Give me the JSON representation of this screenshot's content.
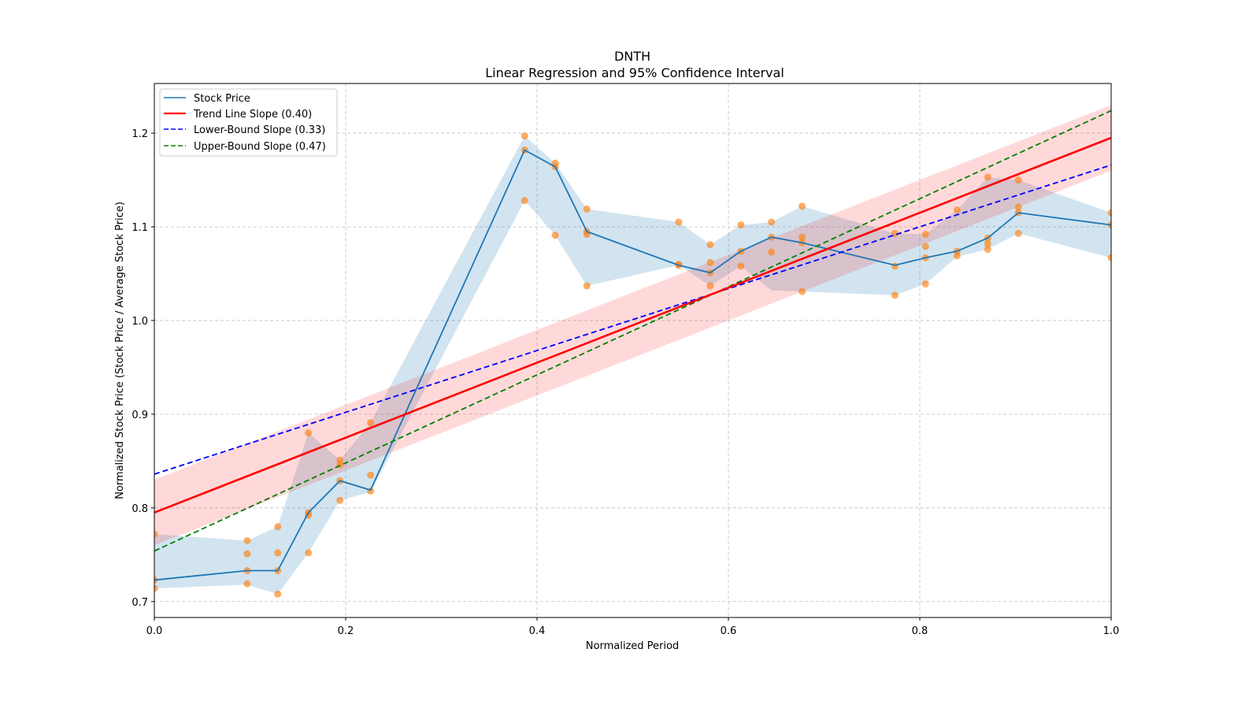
{
  "chart_data": {
    "type": "line",
    "title": "DNTH",
    "subtitle": "Linear Regression and 95% Confidence Interval",
    "xlabel": "Normalized Period",
    "ylabel": "Normalized Stock Price (Stock Price / Average Stock Price)",
    "xlim": [
      0.0,
      1.0
    ],
    "ylim": [
      0.683,
      1.253
    ],
    "xticks": [
      0.0,
      0.2,
      0.4,
      0.6,
      0.8,
      1.0
    ],
    "xtick_labels": [
      "0.0",
      "0.2",
      "0.4",
      "0.6",
      "0.8",
      "1.0"
    ],
    "yticks": [
      0.7,
      0.8,
      0.9,
      1.0,
      1.1,
      1.2
    ],
    "ytick_labels": [
      "0.7",
      "0.8",
      "0.9",
      "1.0",
      "1.1",
      "1.2"
    ],
    "grid": true,
    "legend_position": "top-left",
    "colors": {
      "stock_line": "#1f77b4",
      "stock_band": "#1f77b4",
      "scatter": "#ff7f0e",
      "trend": "#ff0000",
      "trend_band": "#ff0000",
      "lower": "#0000ff",
      "upper": "#008000",
      "grid": "#b0b0b0"
    },
    "legend": [
      {
        "label": "Stock Price",
        "style": "solid",
        "color": "#1f77b4"
      },
      {
        "label": "Trend Line Slope (0.40)",
        "style": "solid",
        "color": "#ff0000"
      },
      {
        "label": "Lower-Bound Slope (0.33)",
        "style": "dashed",
        "color": "#0000ff"
      },
      {
        "label": "Upper-Bound Slope (0.47)",
        "style": "dashed",
        "color": "#008000"
      }
    ],
    "stock_price": {
      "x": [
        0.0,
        0.097,
        0.129,
        0.161,
        0.194,
        0.226,
        0.387,
        0.419,
        0.452,
        0.548,
        0.581,
        0.613,
        0.645,
        0.677,
        0.774,
        0.806,
        0.839,
        0.871,
        0.903,
        1.0
      ],
      "mean": [
        0.723,
        0.733,
        0.733,
        0.795,
        0.829,
        0.819,
        1.182,
        1.164,
        1.095,
        1.059,
        1.051,
        1.074,
        1.089,
        1.083,
        1.059,
        1.067,
        1.074,
        1.088,
        1.115,
        1.102
      ],
      "low": [
        0.714,
        0.718,
        0.708,
        0.752,
        0.808,
        0.817,
        1.128,
        1.091,
        1.037,
        1.059,
        1.037,
        1.058,
        1.032,
        1.031,
        1.027,
        1.039,
        1.068,
        1.076,
        1.093,
        1.067
      ],
      "high": [
        0.772,
        0.765,
        0.78,
        0.88,
        0.851,
        0.891,
        1.197,
        1.168,
        1.119,
        1.105,
        1.081,
        1.102,
        1.105,
        1.122,
        1.093,
        1.092,
        1.118,
        1.153,
        1.15,
        1.115
      ]
    },
    "scatter_points": [
      [
        0.0,
        0.772
      ],
      [
        0.0,
        0.723
      ],
      [
        0.0,
        0.714
      ],
      [
        0.097,
        0.765
      ],
      [
        0.097,
        0.751
      ],
      [
        0.097,
        0.733
      ],
      [
        0.097,
        0.719
      ],
      [
        0.129,
        0.78
      ],
      [
        0.129,
        0.752
      ],
      [
        0.129,
        0.733
      ],
      [
        0.129,
        0.708
      ],
      [
        0.161,
        0.88
      ],
      [
        0.161,
        0.795
      ],
      [
        0.161,
        0.792
      ],
      [
        0.161,
        0.752
      ],
      [
        0.194,
        0.851
      ],
      [
        0.194,
        0.846
      ],
      [
        0.194,
        0.829
      ],
      [
        0.194,
        0.808
      ],
      [
        0.226,
        0.891
      ],
      [
        0.226,
        0.835
      ],
      [
        0.226,
        0.818
      ],
      [
        0.387,
        1.197
      ],
      [
        0.387,
        1.182
      ],
      [
        0.387,
        1.128
      ],
      [
        0.419,
        1.168
      ],
      [
        0.419,
        1.164
      ],
      [
        0.419,
        1.091
      ],
      [
        0.452,
        1.119
      ],
      [
        0.452,
        1.095
      ],
      [
        0.452,
        1.092
      ],
      [
        0.452,
        1.037
      ],
      [
        0.548,
        1.105
      ],
      [
        0.548,
        1.06
      ],
      [
        0.548,
        1.059
      ],
      [
        0.581,
        1.081
      ],
      [
        0.581,
        1.062
      ],
      [
        0.581,
        1.051
      ],
      [
        0.581,
        1.037
      ],
      [
        0.613,
        1.102
      ],
      [
        0.613,
        1.074
      ],
      [
        0.613,
        1.058
      ],
      [
        0.645,
        1.105
      ],
      [
        0.645,
        1.089
      ],
      [
        0.645,
        1.073
      ],
      [
        0.677,
        1.122
      ],
      [
        0.677,
        1.089
      ],
      [
        0.677,
        1.083
      ],
      [
        0.677,
        1.031
      ],
      [
        0.774,
        1.093
      ],
      [
        0.774,
        1.058
      ],
      [
        0.774,
        1.027
      ],
      [
        0.806,
        1.092
      ],
      [
        0.806,
        1.079
      ],
      [
        0.806,
        1.067
      ],
      [
        0.806,
        1.039
      ],
      [
        0.839,
        1.118
      ],
      [
        0.839,
        1.074
      ],
      [
        0.839,
        1.069
      ],
      [
        0.871,
        1.153
      ],
      [
        0.871,
        1.088
      ],
      [
        0.871,
        1.082
      ],
      [
        0.871,
        1.076
      ],
      [
        0.903,
        1.15
      ],
      [
        0.903,
        1.121
      ],
      [
        0.903,
        1.115
      ],
      [
        0.903,
        1.093
      ],
      [
        1.0,
        1.115
      ],
      [
        1.0,
        1.102
      ],
      [
        1.0,
        1.067
      ]
    ],
    "trend_line": {
      "slope": 0.4,
      "intercept": 0.795,
      "band_halfwidth": 0.035
    },
    "lower_bound_line": {
      "slope": 0.33,
      "intercept": 0.836
    },
    "upper_bound_line": {
      "slope": 0.47,
      "intercept": 0.754
    }
  }
}
